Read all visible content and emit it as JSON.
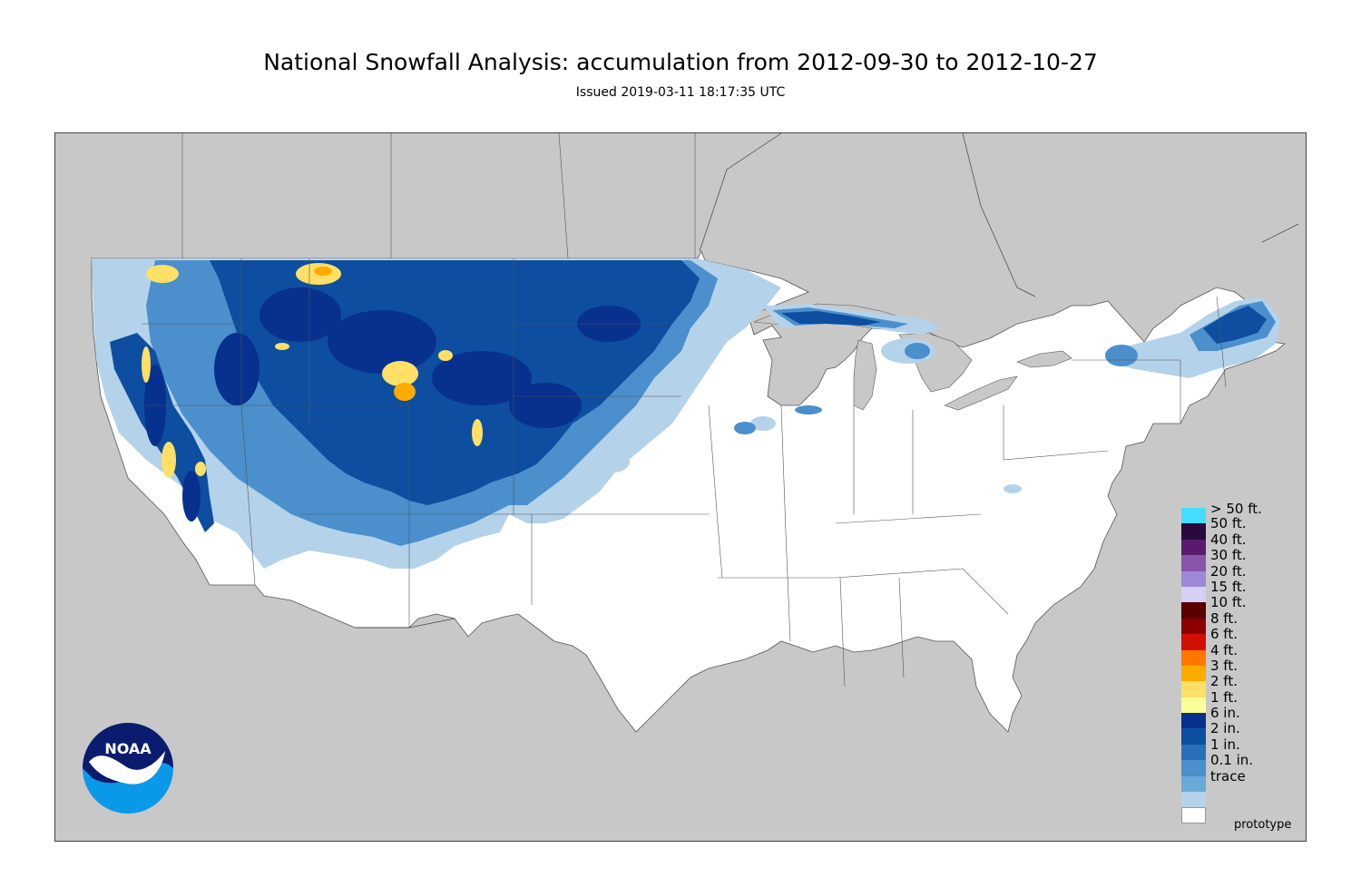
{
  "header": {
    "title": "National Snowfall Analysis: accumulation from 2012-09-30 to 2012-10-27",
    "subtitle": "Issued 2019-03-11 18:17:35 UTC"
  },
  "legend": {
    "items": [
      {
        "label": "> 50 ft.",
        "color": "#44ddff"
      },
      {
        "label": "50 ft.",
        "color": "#2a0a3e"
      },
      {
        "label": "40 ft.",
        "color": "#5a1a6e"
      },
      {
        "label": "30 ft.",
        "color": "#8855aa"
      },
      {
        "label": "20 ft.",
        "color": "#a088d8"
      },
      {
        "label": "15 ft.",
        "color": "#d6d0f6"
      },
      {
        "label": "10 ft.",
        "color": "#5a0000"
      },
      {
        "label": "8 ft.",
        "color": "#8c0000"
      },
      {
        "label": "6 ft.",
        "color": "#d01000"
      },
      {
        "label": "4 ft.",
        "color": "#ff7700"
      },
      {
        "label": "3 ft.",
        "color": "#ffaa00"
      },
      {
        "label": "2 ft.",
        "color": "#ffe066"
      },
      {
        "label": "1 ft.",
        "color": "#ffff99"
      },
      {
        "label": "6 in.",
        "color": "#08308e"
      },
      {
        "label": "2 in.",
        "color": "#0d4ea0"
      },
      {
        "label": "1 in.",
        "color": "#2a6fb8"
      },
      {
        "label": "0.1 in.",
        "color": "#4b8fcc"
      },
      {
        "label": "trace",
        "color": "#6aaad8"
      },
      {
        "label": "",
        "color": "#b4d2ea"
      },
      {
        "label": "",
        "color": "#ffffff"
      }
    ]
  },
  "footer": {
    "note": "prototype"
  },
  "logo": {
    "text": "NOAA",
    "icon": "noaa-logo-icon"
  },
  "colors": {
    "background_land": "#c8c8c8",
    "us_land": "#ffffff",
    "border": "#333333"
  }
}
